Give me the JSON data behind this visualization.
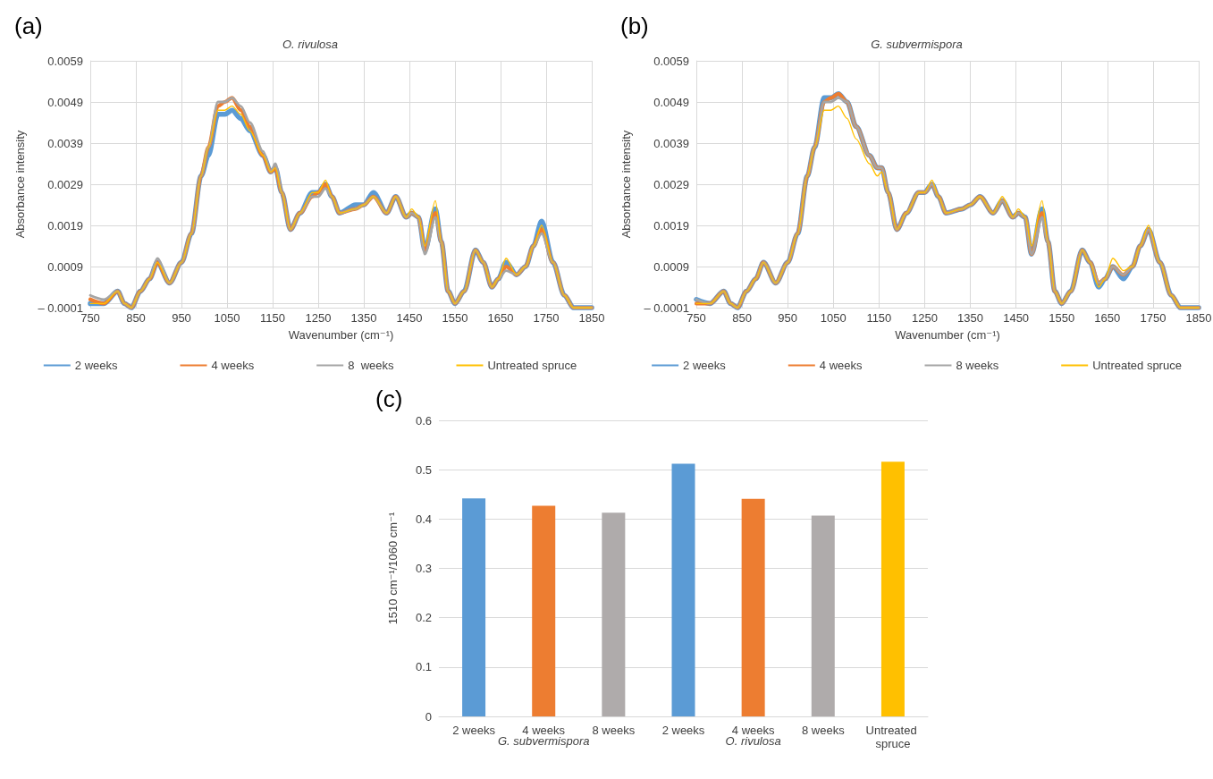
{
  "chart_data": [
    {
      "type": "line",
      "title": "O. rivulosa",
      "xlabel": "Wavenumber (cm⁻¹)",
      "ylabel": "Absorbance intensity",
      "annotations": [
        "(a)"
      ],
      "xlim": [
        750,
        1850
      ],
      "xticks": [
        750,
        850,
        950,
        1050,
        1150,
        1250,
        1350,
        1450,
        1550,
        1650,
        1750,
        1850
      ],
      "ylim": [
        -0.0001,
        0.0059
      ],
      "yticks": [
        {
          "value": -0.0001,
          "label": "– 0.0001"
        },
        0.0009,
        0.0019,
        0.0029,
        0.0039,
        0.0049,
        0.0059
      ],
      "grid": true,
      "legend": "bottom",
      "marker": "none",
      "line_style": "solid",
      "x": [
        750,
        780,
        810,
        825,
        840,
        860,
        880,
        897,
        924,
        950,
        972,
        993,
        1009,
        1030,
        1045,
        1061,
        1080,
        1100,
        1129,
        1146,
        1156,
        1170,
        1189,
        1210,
        1237,
        1250,
        1266,
        1280,
        1297,
        1332,
        1350,
        1371,
        1400,
        1420,
        1443,
        1455,
        1470,
        1484,
        1507,
        1520,
        1535,
        1550,
        1570,
        1595,
        1612,
        1631,
        1645,
        1662,
        1685,
        1705,
        1722,
        1740,
        1765,
        1790,
        1810,
        1830,
        1850
      ],
      "series": [
        {
          "name": "2 weeks",
          "color": "#5b9bd5",
          "values": [
            0,
            0,
            0.0003,
            0,
            -0.0001,
            0.0003,
            0.0006,
            0.001,
            0.0005,
            0.001,
            0.0017,
            0.0031,
            0.0036,
            0.0046,
            0.0046,
            0.0047,
            0.0045,
            0.0042,
            0.0036,
            0.0032,
            0.0033,
            0.0027,
            0.0018,
            0.0022,
            0.0027,
            0.0027,
            0.0029,
            0.0026,
            0.0022,
            0.0024,
            0.0024,
            0.0027,
            0.0022,
            0.0026,
            0.0021,
            0.0022,
            0.0021,
            0.0013,
            0.0023,
            0.0015,
            0.0003,
            0,
            0.0003,
            0.0013,
            0.001,
            0.0004,
            0.0006,
            0.001,
            0.0007,
            0.0009,
            0.0014,
            0.002,
            0.001,
            0.0002,
            -0.0001,
            -0.0001,
            -0.0001
          ]
        },
        {
          "name": "4 weeks",
          "color": "#ed7d31",
          "values": [
            0.0001,
            0,
            0.0003,
            0,
            -0.0001,
            0.0003,
            0.0006,
            0.001,
            0.0005,
            0.001,
            0.0017,
            0.0031,
            0.0038,
            0.0048,
            0.0049,
            0.005,
            0.0047,
            0.0043,
            0.0036,
            0.0032,
            0.0033,
            0.0027,
            0.0018,
            0.0022,
            0.0026,
            0.0027,
            0.0029,
            0.0026,
            0.0022,
            0.0023,
            0.0024,
            0.0026,
            0.0022,
            0.0026,
            0.0021,
            0.0022,
            0.0021,
            0.0013,
            0.0022,
            0.0015,
            0.0003,
            0,
            0.0003,
            0.0013,
            0.001,
            0.0004,
            0.0006,
            0.0009,
            0.0007,
            0.0009,
            0.0014,
            0.0018,
            0.001,
            0.0002,
            -0.0001,
            -0.0001,
            -0.0001
          ]
        },
        {
          "name": "8  weeks",
          "color": "#a5a5a5",
          "values": [
            0.0002,
            0.0001,
            0.0003,
            0,
            -0.0001,
            0.0003,
            0.0006,
            0.0011,
            0.0005,
            0.001,
            0.0017,
            0.0031,
            0.0038,
            0.0049,
            0.0049,
            0.005,
            0.0048,
            0.0044,
            0.0037,
            0.0032,
            0.0034,
            0.0027,
            0.0018,
            0.0022,
            0.0026,
            0.0026,
            0.0028,
            0.0026,
            0.0022,
            0.0023,
            0.0024,
            0.0026,
            0.0022,
            0.0026,
            0.0021,
            0.0022,
            0.0021,
            0.0012,
            0.0021,
            0.0015,
            0.0003,
            0,
            0.0003,
            0.0013,
            0.001,
            0.0004,
            0.0006,
            0.0008,
            0.0007,
            0.0009,
            0.0014,
            0.0017,
            0.001,
            0.0002,
            -0.0001,
            -0.0001,
            -0.0001
          ]
        },
        {
          "name": "Untreated spruce",
          "color": "#ffc000",
          "values": [
            0,
            0,
            0.0003,
            0,
            -0.0001,
            0.0003,
            0.0006,
            0.001,
            0.0005,
            0.001,
            0.0017,
            0.0031,
            0.0038,
            0.0047,
            0.0047,
            0.0048,
            0.0046,
            0.0042,
            0.0036,
            0.0032,
            0.0033,
            0.0027,
            0.0018,
            0.0022,
            0.0027,
            0.0027,
            0.003,
            0.0026,
            0.0022,
            0.0023,
            0.0024,
            0.0026,
            0.0022,
            0.0026,
            0.0021,
            0.0023,
            0.0021,
            0.0014,
            0.0025,
            0.0015,
            0.0003,
            0,
            0.0003,
            0.0013,
            0.001,
            0.0004,
            0.0006,
            0.0011,
            0.0007,
            0.0009,
            0.0014,
            0.0019,
            0.001,
            0.0002,
            -0.0001,
            -0.0001,
            -0.0001
          ]
        }
      ]
    },
    {
      "type": "line",
      "title": "G. subvermispora",
      "xlabel": "Wavenumber (cm⁻¹)",
      "ylabel": "Absorbance intensity",
      "annotations": [
        "(b)"
      ],
      "xlim": [
        750,
        1850
      ],
      "xticks": [
        750,
        850,
        950,
        1050,
        1150,
        1250,
        1350,
        1450,
        1550,
        1650,
        1750,
        1850
      ],
      "ylim": [
        -0.0001,
        0.0059
      ],
      "yticks": [
        {
          "value": -0.0001,
          "label": "– 0.0001"
        },
        0.0009,
        0.0019,
        0.0029,
        0.0039,
        0.0049,
        0.0059
      ],
      "grid": true,
      "legend": "bottom",
      "marker": "none",
      "line_style": "solid",
      "x": [
        750,
        780,
        810,
        825,
        840,
        860,
        880,
        897,
        924,
        950,
        972,
        993,
        1009,
        1030,
        1045,
        1061,
        1080,
        1100,
        1129,
        1146,
        1156,
        1170,
        1189,
        1210,
        1237,
        1250,
        1266,
        1280,
        1297,
        1332,
        1350,
        1371,
        1400,
        1420,
        1443,
        1455,
        1470,
        1484,
        1507,
        1520,
        1535,
        1550,
        1570,
        1595,
        1612,
        1631,
        1645,
        1662,
        1685,
        1705,
        1722,
        1740,
        1765,
        1790,
        1810,
        1830,
        1850
      ],
      "series": [
        {
          "name": "2 weeks",
          "color": "#5b9bd5",
          "values": [
            0.0001,
            0,
            0.0003,
            0,
            -0.0001,
            0.0003,
            0.0006,
            0.001,
            0.0005,
            0.001,
            0.0017,
            0.0031,
            0.0038,
            0.005,
            0.005,
            0.0051,
            0.0049,
            0.0043,
            0.0036,
            0.0033,
            0.0033,
            0.0027,
            0.0018,
            0.0022,
            0.0027,
            0.0027,
            0.0029,
            0.0026,
            0.0022,
            0.0023,
            0.0024,
            0.0026,
            0.0022,
            0.0025,
            0.0021,
            0.0022,
            0.0021,
            0.0012,
            0.0023,
            0.0015,
            0.0003,
            0,
            0.0003,
            0.0013,
            0.001,
            0.0004,
            0.0006,
            0.0009,
            0.0006,
            0.0009,
            0.0014,
            0.0018,
            0.001,
            0.0002,
            -0.0001,
            -0.0001,
            -0.0001
          ]
        },
        {
          "name": "4 weeks",
          "color": "#ed7d31",
          "values": [
            0,
            0,
            0.0003,
            0,
            -0.0001,
            0.0003,
            0.0006,
            0.001,
            0.0005,
            0.001,
            0.0017,
            0.0031,
            0.0038,
            0.0049,
            0.005,
            0.0051,
            0.0049,
            0.0043,
            0.0036,
            0.0033,
            0.0033,
            0.0027,
            0.0018,
            0.0022,
            0.0027,
            0.0027,
            0.0029,
            0.0026,
            0.0022,
            0.0023,
            0.0024,
            0.0026,
            0.0022,
            0.0025,
            0.0021,
            0.0022,
            0.0021,
            0.0012,
            0.0022,
            0.0015,
            0.0003,
            0,
            0.0003,
            0.0013,
            0.001,
            0.0005,
            0.0006,
            0.0009,
            0.0007,
            0.0009,
            0.0014,
            0.0018,
            0.001,
            0.0002,
            -0.0001,
            -0.0001,
            -0.0001
          ]
        },
        {
          "name": "8 weeks",
          "color": "#a5a5a5",
          "values": [
            0.0001,
            0,
            0.0003,
            0,
            -0.0001,
            0.0003,
            0.0006,
            0.001,
            0.0005,
            0.001,
            0.0017,
            0.0031,
            0.0038,
            0.0049,
            0.0049,
            0.005,
            0.0049,
            0.0043,
            0.0036,
            0.0033,
            0.0033,
            0.0027,
            0.0018,
            0.0022,
            0.0027,
            0.0027,
            0.0029,
            0.0026,
            0.0022,
            0.0023,
            0.0024,
            0.0026,
            0.0022,
            0.0025,
            0.0021,
            0.0022,
            0.0021,
            0.0012,
            0.0021,
            0.0015,
            0.0003,
            0,
            0.0003,
            0.0013,
            0.001,
            0.0005,
            0.0006,
            0.0009,
            0.0007,
            0.0009,
            0.0014,
            0.0018,
            0.001,
            0.0002,
            -0.0001,
            -0.0001,
            -0.0001
          ]
        },
        {
          "name": "Untreated spruce",
          "color": "#ffc000",
          "values": [
            0,
            0,
            0.0003,
            0,
            -0.0001,
            0.0003,
            0.0006,
            0.001,
            0.0005,
            0.001,
            0.0017,
            0.0031,
            0.0038,
            0.0047,
            0.0047,
            0.0048,
            0.0045,
            0.004,
            0.0034,
            0.0031,
            0.0032,
            0.0027,
            0.0018,
            0.0022,
            0.0027,
            0.0027,
            0.003,
            0.0026,
            0.0022,
            0.0023,
            0.0024,
            0.0026,
            0.0022,
            0.0026,
            0.0021,
            0.0023,
            0.0021,
            0.0014,
            0.0025,
            0.0015,
            0.0003,
            0,
            0.0003,
            0.0013,
            0.001,
            0.0004,
            0.0006,
            0.0011,
            0.0008,
            0.0009,
            0.0014,
            0.0019,
            0.001,
            0.0002,
            -0.0001,
            -0.0001,
            -0.0001
          ]
        }
      ]
    },
    {
      "type": "bar",
      "ylabel": "1510 cm⁻¹/1060 cm⁻¹",
      "annotations": [
        "(c)",
        "G. subvermispora",
        "O. rivulosa"
      ],
      "categories": [
        "2 weeks",
        "4 weeks",
        "8 weeks",
        "2 weeks",
        "4 weeks",
        "8 weeks",
        "Untreated spruce"
      ],
      "values": [
        0.442,
        0.427,
        0.413,
        0.512,
        0.441,
        0.407,
        0.516
      ],
      "colors": [
        "#5b9bd5",
        "#ed7d31",
        "#afabab",
        "#5b9bd5",
        "#ed7d31",
        "#afabab",
        "#ffc000"
      ],
      "ylim": [
        0,
        0.6
      ],
      "yticks": [
        0,
        0.1,
        0.2,
        0.3,
        0.4,
        0.5,
        0.6
      ],
      "grid": "y",
      "legend": false
    }
  ]
}
